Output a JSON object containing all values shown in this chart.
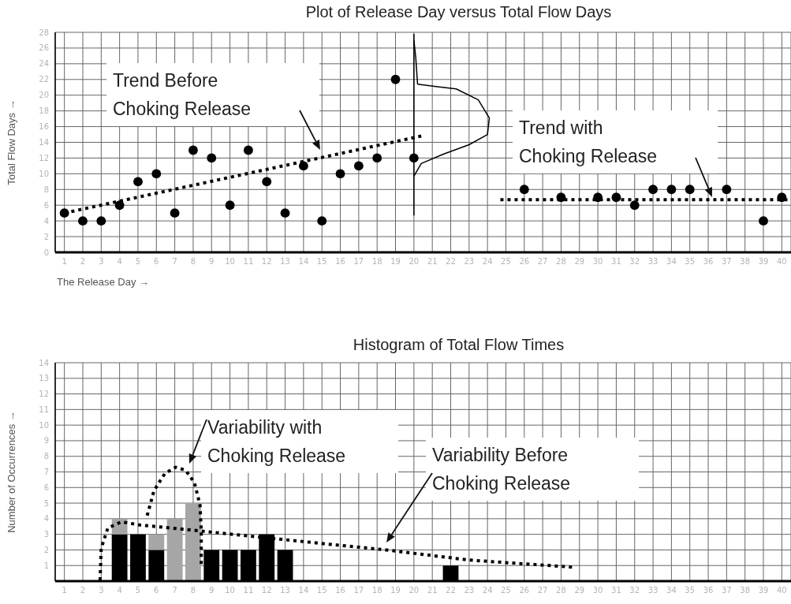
{
  "chart_data": [
    {
      "type": "scatter",
      "title": "Plot of Release Day versus Total Flow Days",
      "xlabel": "The Release Day →",
      "ylabel": "Total Flow Days →",
      "xlim": [
        0.5,
        40.5
      ],
      "xticks": [
        1,
        2,
        3,
        4,
        5,
        6,
        7,
        8,
        9,
        10,
        11,
        12,
        13,
        14,
        15,
        16,
        17,
        18,
        19,
        20,
        21,
        22,
        23,
        24,
        25,
        26,
        27,
        28,
        29,
        30,
        31,
        32,
        33,
        34,
        35,
        36,
        37,
        38,
        39,
        40
      ],
      "ylim": [
        0,
        28
      ],
      "yticks": [
        0,
        2,
        4,
        6,
        8,
        10,
        12,
        14,
        16,
        18,
        20,
        22,
        24,
        26,
        28
      ],
      "grid": true,
      "marker": "circle",
      "series": [
        {
          "color": "#000000",
          "x": [
            1,
            2,
            3,
            4,
            5,
            6,
            7,
            8,
            9,
            10,
            11,
            12,
            13,
            14,
            15,
            16,
            17,
            18,
            19,
            20,
            26,
            28,
            30,
            31,
            32,
            33,
            34,
            35,
            37,
            39,
            40
          ],
          "values": [
            5,
            4,
            4,
            6,
            9,
            10,
            5,
            13,
            12,
            6,
            13,
            9,
            5,
            11,
            4,
            10,
            11,
            12,
            22,
            12,
            8,
            7,
            7,
            7,
            6,
            8,
            8,
            8,
            8,
            4,
            7
          ]
        },
        {
          "type": "line",
          "color": "#000000",
          "line_style": "dotted",
          "marker": "none",
          "x": [
            1,
            20.4
          ],
          "values": [
            5,
            14.8
          ]
        },
        {
          "type": "line",
          "color": "#000000",
          "line_style": "dotted",
          "marker": "none",
          "x": [
            24.7,
            40.5
          ],
          "values": [
            6.7,
            6.7
          ]
        },
        {
          "type": "line",
          "color": "#000000",
          "line_style": "solid",
          "marker": "none",
          "x": [
            20,
            20
          ],
          "values": [
            4.7,
            27.8
          ]
        },
        {
          "type": "line",
          "color": "#000000",
          "line_style": "solid",
          "marker": "none",
          "x": [
            20,
            20.1,
            20.2,
            21.2,
            22.3,
            23.5,
            24.1,
            24,
            23,
            21.6,
            20.4,
            20
          ],
          "values": [
            27,
            24.8,
            21.4,
            21.1,
            20.8,
            19.4,
            17.1,
            15,
            13.7,
            12.5,
            11.3,
            9.7
          ]
        }
      ],
      "annotations": [
        "Trend Before\nChoking Release",
        "Trend with\nChoking Release"
      ]
    },
    {
      "type": "bar",
      "title": "Histogram of Total Flow Times",
      "ylabel": "Number of Occurrences →",
      "stacked": true,
      "x": [
        4,
        5,
        6,
        7,
        8,
        9,
        10,
        11,
        12,
        13,
        22
      ],
      "xlim": [
        0.5,
        40.5
      ],
      "xticks": [
        1,
        2,
        3,
        4,
        5,
        6,
        7,
        8,
        9,
        10,
        11,
        12,
        13,
        14,
        15,
        16,
        17,
        18,
        19,
        20,
        21,
        22,
        23,
        24,
        25,
        26,
        27,
        28,
        29,
        30,
        31,
        32,
        33,
        34,
        35,
        36,
        37,
        38,
        39,
        40
      ],
      "ylim": [
        0,
        14
      ],
      "yticks": [
        1,
        2,
        3,
        4,
        5,
        6,
        7,
        8,
        9,
        10,
        11,
        12,
        13,
        14
      ],
      "grid": true,
      "series": [
        {
          "color": "#000000",
          "values": [
            3,
            3,
            2,
            null,
            null,
            2,
            2,
            2,
            3,
            2,
            1
          ]
        },
        {
          "color": "#a6a6a6",
          "values": [
            1,
            null,
            1,
            4,
            5,
            null,
            null,
            null,
            null,
            null,
            null
          ]
        },
        {
          "type": "line",
          "color": "#000000",
          "line_style": "dotted",
          "marker": "none",
          "x": [
            5.5,
            5.87,
            6.46,
            7.05,
            7.6,
            8.07,
            8.37,
            8.44,
            8.44
          ],
          "values": [
            4.2,
            5.8,
            6.9,
            7.3,
            7.1,
            6.3,
            4.9,
            3.2,
            1.1
          ]
        },
        {
          "type": "line",
          "color": "#000000",
          "line_style": "dotted",
          "marker": "none",
          "x": [
            2.94,
            3,
            3.36,
            4.1,
            5.1,
            7.7,
            11.4,
            15.1,
            18.5,
            23,
            28.6
          ],
          "values": [
            0.05,
            2.1,
            3.4,
            3.8,
            3.6,
            3.3,
            2.85,
            2.4,
            2,
            1.35,
            0.9
          ]
        }
      ],
      "annotations": [
        "Variability with\nChoking Release",
        "Variability Before\nChoking Release"
      ]
    }
  ]
}
